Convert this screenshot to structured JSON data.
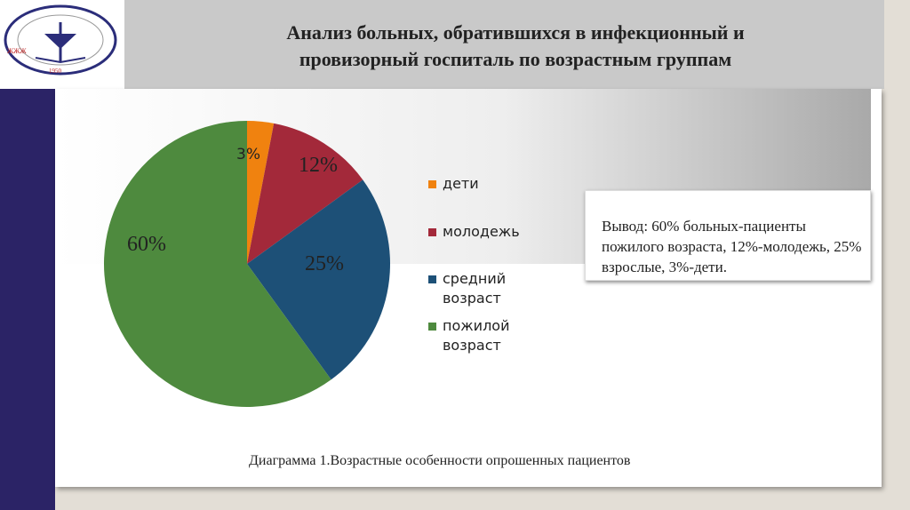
{
  "header": {
    "title_line1": "Анализ больных, обратившихся в инфекционный и",
    "title_line2": "провизорный госпиталь по возрастным группам"
  },
  "logo": {
    "text": "КАРАГАНДЫ МЕМЛЕКЕТТІК МЕДИЦИНА УНИВЕРСИТЕТІ",
    "year": "1950"
  },
  "chart_data": {
    "type": "pie",
    "categories": [
      "дети",
      "молодежь",
      "средний возраст",
      "пожилой возраст"
    ],
    "values": [
      3,
      12,
      25,
      60
    ],
    "labels": [
      "3%",
      "12%",
      "25%",
      "60%"
    ],
    "colors": [
      "#f0820f",
      "#a3293a",
      "#1d5077",
      "#4e8a3e"
    ],
    "legend_position": "right"
  },
  "conclusion": {
    "text": "Вывод: 60% больных-пациенты пожилого возраста, 12%-молодежь, 25% взрослые, 3%-дети."
  },
  "caption": "Диаграмма 1.Возрастные особенности опрошенных пациентов"
}
